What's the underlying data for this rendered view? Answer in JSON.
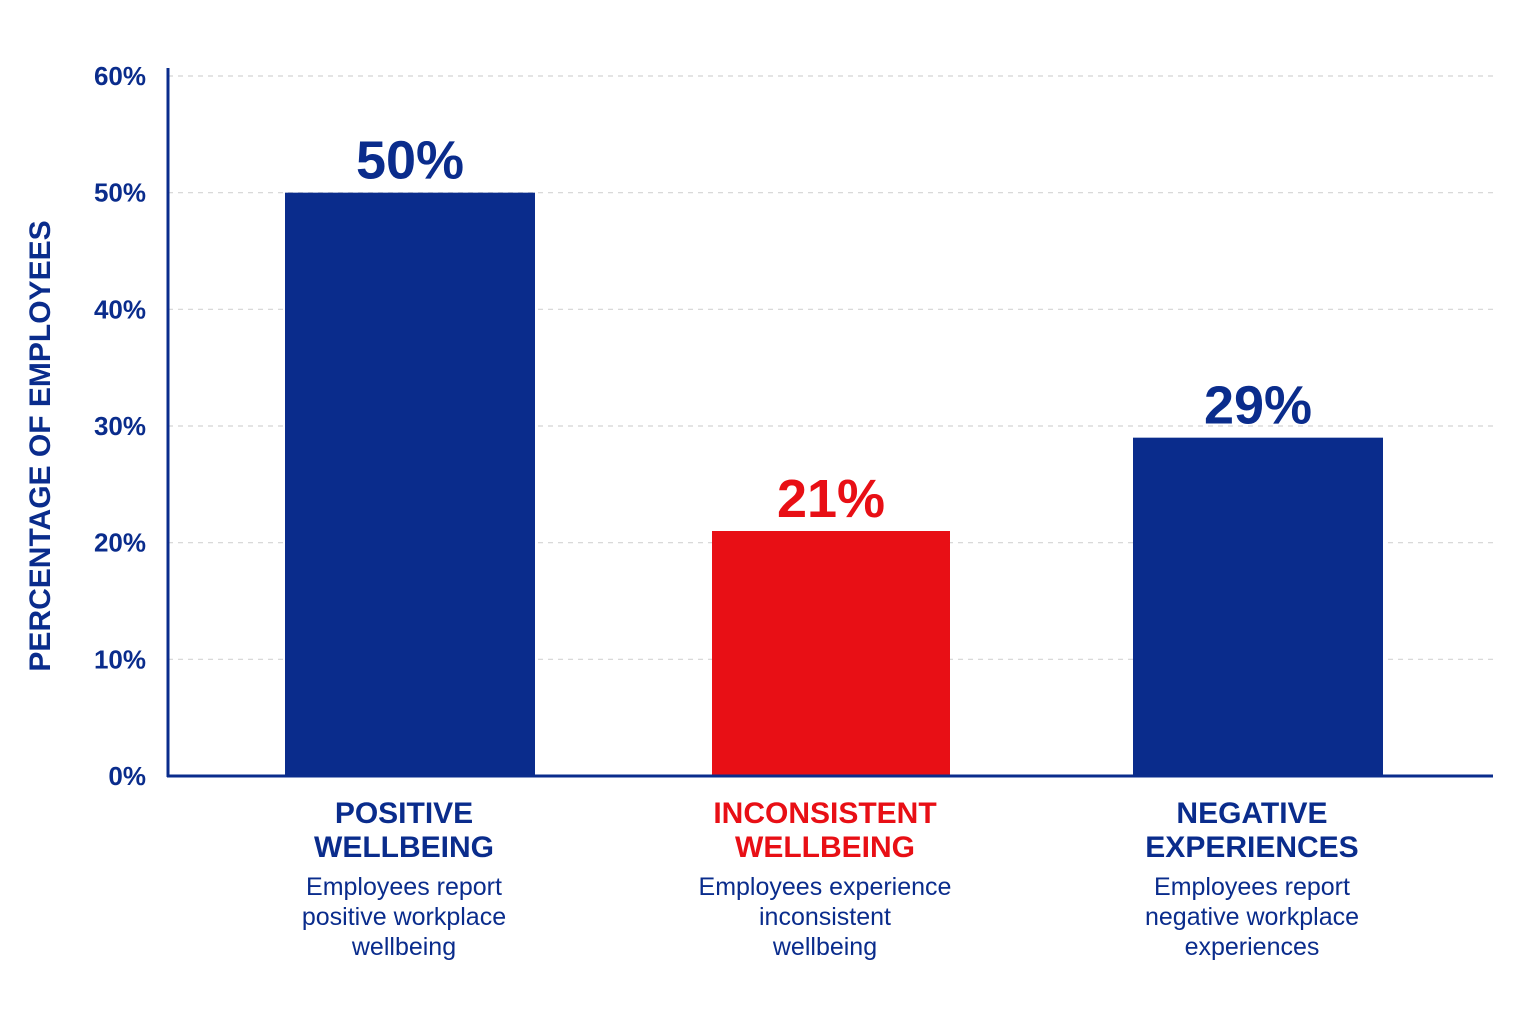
{
  "chart_data": {
    "type": "bar",
    "title": "",
    "xlabel": "",
    "ylabel": "PERCENTAGE OF EMPLOYEES",
    "ylim": [
      0,
      60
    ],
    "yticks": [
      0,
      10,
      20,
      30,
      40,
      50,
      60
    ],
    "ytick_labels": [
      "0%",
      "10%",
      "20%",
      "30%",
      "40%",
      "50%",
      "60%"
    ],
    "grid": true,
    "legend": "none",
    "categories": [
      {
        "title_lines": [
          "POSITIVE",
          "WELLBEING"
        ],
        "description_lines": [
          "Employees report",
          "positive workplace",
          "wellbeing"
        ],
        "value": 50,
        "value_label": "50%",
        "color": "#0a2c8c"
      },
      {
        "title_lines": [
          "INCONSISTENT",
          "WELLBEING"
        ],
        "description_lines": [
          "Employees experience",
          "inconsistent",
          "wellbeing"
        ],
        "value": 21,
        "value_label": "21%",
        "color": "#e80f15"
      },
      {
        "title_lines": [
          "NEGATIVE",
          "EXPERIENCES"
        ],
        "description_lines": [
          "Employees report",
          "negative workplace",
          "experiences"
        ],
        "value": 29,
        "value_label": "29%",
        "color": "#0a2c8c"
      }
    ],
    "colors": {
      "axis": "#0a2c8c",
      "grid": "#d4d4d4",
      "text": "#0a2c8c",
      "highlight": "#e80f15"
    }
  }
}
